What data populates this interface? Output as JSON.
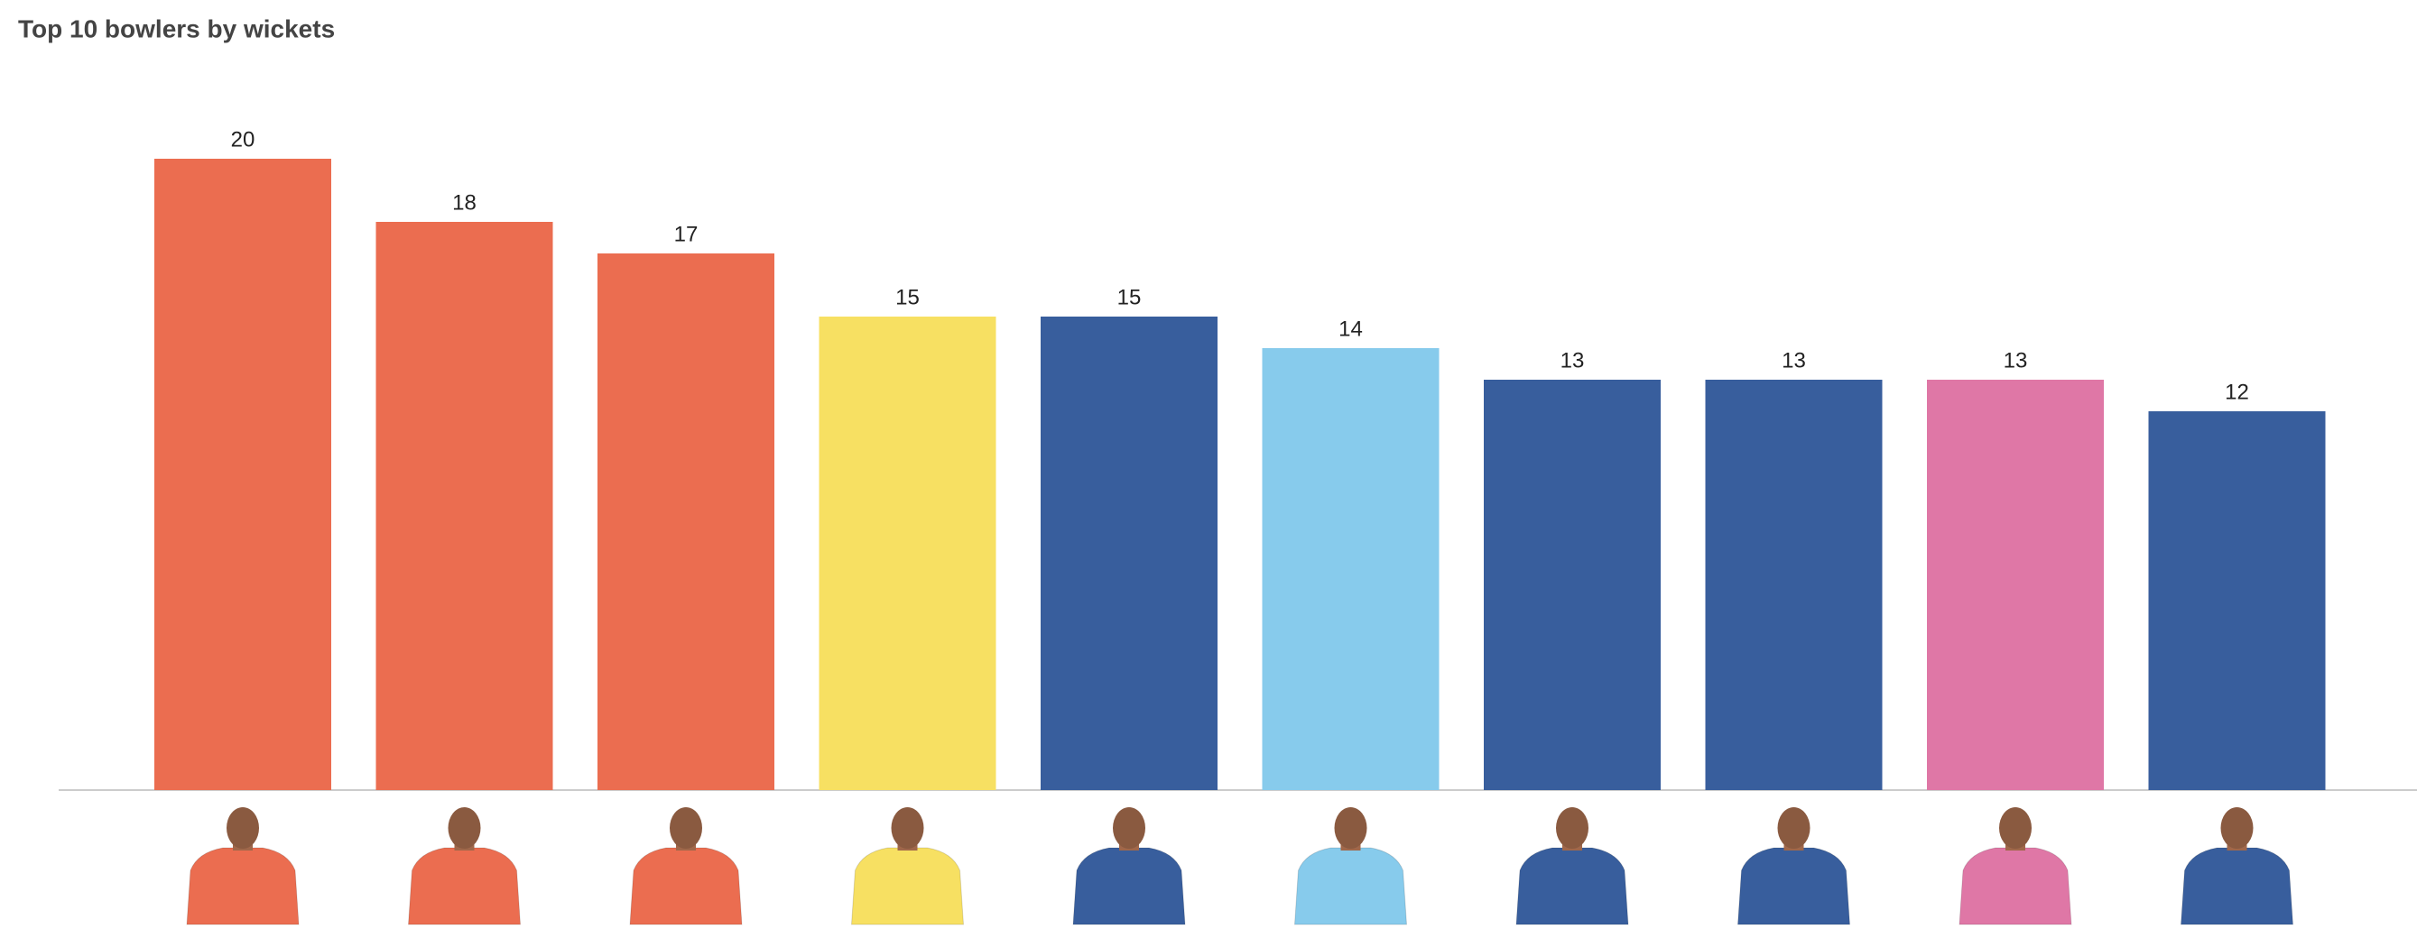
{
  "chart_data": {
    "type": "bar",
    "title": "Top 10 bowlers by wickets",
    "categories": [
      null,
      null,
      null,
      null,
      null,
      null,
      null,
      null,
      null,
      null
    ],
    "values": [
      20,
      18,
      17,
      15,
      15,
      14,
      13,
      13,
      13,
      12
    ],
    "colors": [
      "#eb6d50",
      "#eb6d50",
      "#eb6d50",
      "#f7e062",
      "#385e9d",
      "#87cbec",
      "#385e9d",
      "#385e9d",
      "#df77a6",
      "#385e9d"
    ]
  }
}
